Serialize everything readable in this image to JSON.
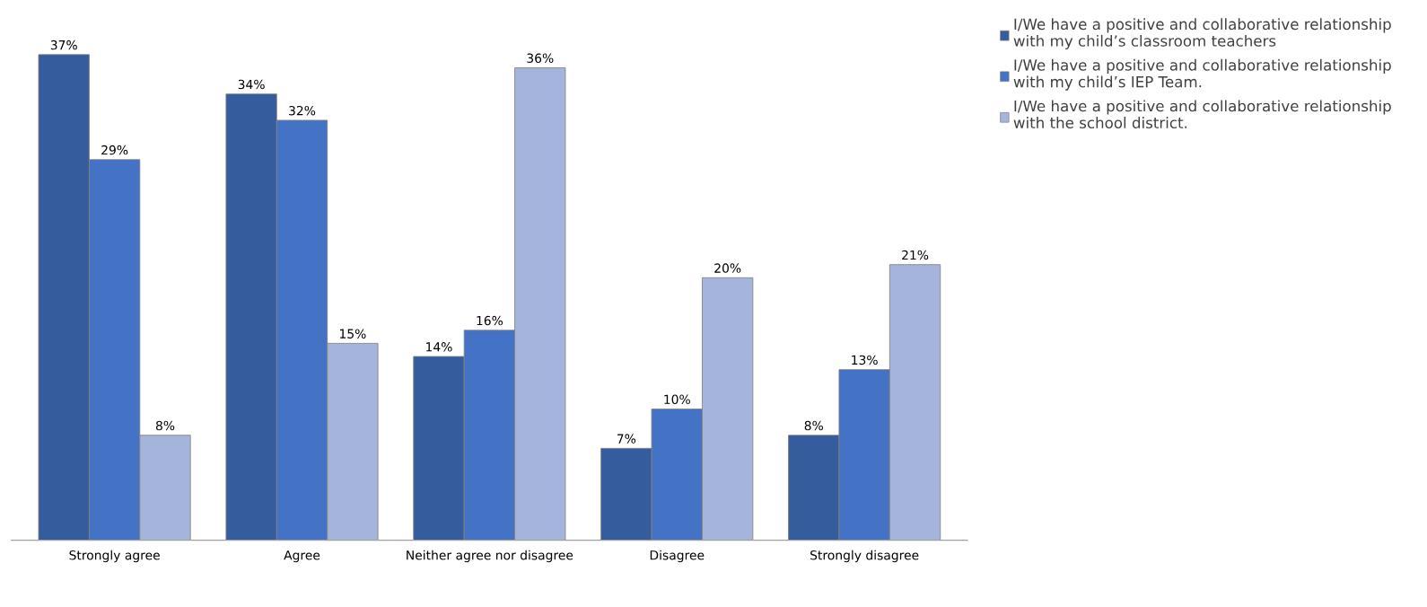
{
  "chart_data": {
    "type": "bar",
    "categories": [
      "Strongly agree",
      "Agree",
      "Neither agree nor disagree",
      "Disagree",
      "Strongly disagree"
    ],
    "series": [
      {
        "name": "I/We have a positive and collaborative relationship with my child’s classroom teachers",
        "color": "#355c9c",
        "values": [
          37,
          34,
          14,
          7,
          8
        ],
        "value_labels": [
          "37%",
          "34%",
          "14%",
          "7%",
          "8%"
        ]
      },
      {
        "name": "I/We have a positive and collaborative relationship with my child’s IEP Team.",
        "color": "#4472c4",
        "values": [
          29,
          32,
          16,
          10,
          13
        ],
        "value_labels": [
          "29%",
          "32%",
          "16%",
          "10%",
          "13%"
        ]
      },
      {
        "name": "I/We have a positive and collaborative relationship with the school district.",
        "color": "#a5b4db",
        "values": [
          8,
          15,
          36,
          20,
          21
        ],
        "value_labels": [
          "8%",
          "15%",
          "36%",
          "20%",
          "21%"
        ]
      }
    ],
    "legend": "right",
    "grid": false
  }
}
